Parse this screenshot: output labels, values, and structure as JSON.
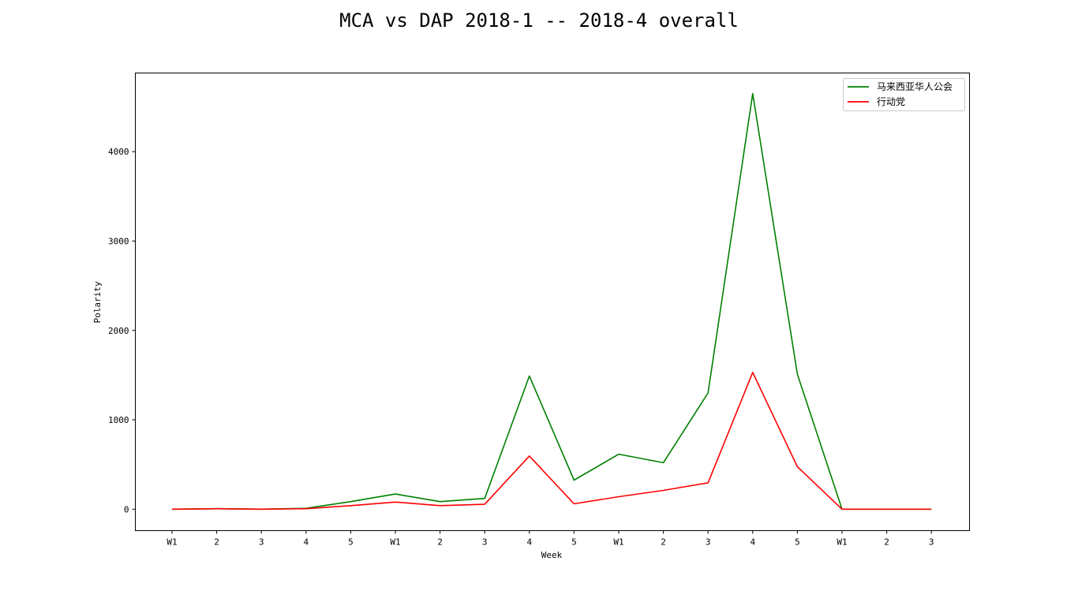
{
  "chart_data": {
    "type": "line",
    "title": "MCA vs DAP 2018-1 -- 2018-4 overall",
    "xlabel": "Week",
    "ylabel": "Polarity",
    "categories": [
      "W1",
      "2",
      "3",
      "4",
      "5",
      "W1",
      "2",
      "3",
      "4",
      "5",
      "W1",
      "2",
      "3",
      "4",
      "5",
      "W1",
      "2",
      "3"
    ],
    "yticks": [
      0,
      1000,
      2000,
      3000,
      4000
    ],
    "ylim": [
      -240,
      4880
    ],
    "legend_position": "top-right",
    "grid": false,
    "series": [
      {
        "name": "马来西亚华人公会",
        "color": "#008000",
        "values": [
          0,
          5,
          0,
          10,
          85,
          170,
          85,
          120,
          1490,
          325,
          615,
          520,
          1300,
          4650,
          1510,
          0,
          0,
          0
        ]
      },
      {
        "name": "行动党",
        "color": "#ff0000",
        "values": [
          0,
          5,
          0,
          5,
          40,
          80,
          40,
          55,
          595,
          60,
          140,
          210,
          295,
          1530,
          475,
          0,
          0,
          0
        ]
      }
    ]
  }
}
